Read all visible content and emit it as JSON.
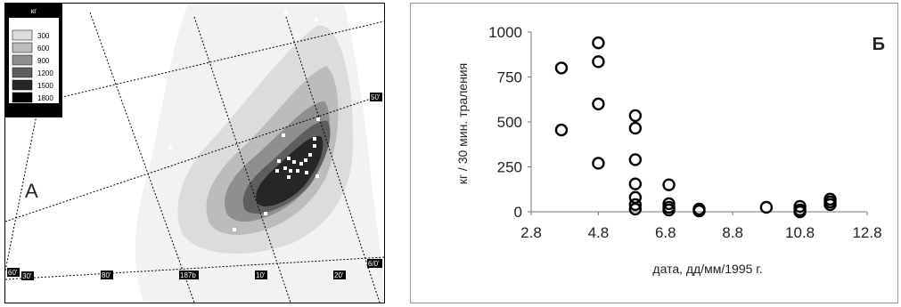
{
  "panel_a": {
    "label": "А",
    "legend": {
      "unit": "кг",
      "levels": [
        "300",
        "600",
        "900",
        "1200",
        "1500",
        "1800"
      ],
      "colors": [
        "#f2f2f2",
        "#dcdcdc",
        "#bcbcbc",
        "#8f8f8f",
        "#5e5e5e",
        "#262626",
        "#000000"
      ]
    },
    "grid_labels": {
      "lon": [
        "30'",
        "80'",
        "187b",
        "10'",
        "20'"
      ],
      "lat": [
        "60'",
        "50'",
        "6/0'"
      ]
    }
  },
  "chart_data": {
    "type": "scatter",
    "panel_label": "Б",
    "xlabel": "дата, дд/мм/1995 г.",
    "ylabel": "кг / 30 мин. траления",
    "xlim": [
      2.8,
      12.8
    ],
    "ylim": [
      0,
      1000
    ],
    "xticks": [
      "2.8",
      "4.8",
      "6.8",
      "8.8",
      "10.8",
      "12.8"
    ],
    "yticks": [
      "0",
      "250",
      "500",
      "750",
      "1000"
    ],
    "grid": false,
    "marker": "open-circle",
    "points": [
      {
        "x": 3.7,
        "y": 800
      },
      {
        "x": 3.7,
        "y": 455
      },
      {
        "x": 4.8,
        "y": 940
      },
      {
        "x": 4.8,
        "y": 835
      },
      {
        "x": 4.8,
        "y": 600
      },
      {
        "x": 4.8,
        "y": 270
      },
      {
        "x": 5.9,
        "y": 535
      },
      {
        "x": 5.9,
        "y": 465
      },
      {
        "x": 5.9,
        "y": 290
      },
      {
        "x": 5.9,
        "y": 155
      },
      {
        "x": 5.9,
        "y": 80
      },
      {
        "x": 5.9,
        "y": 40
      },
      {
        "x": 5.9,
        "y": 15
      },
      {
        "x": 6.9,
        "y": 150
      },
      {
        "x": 6.9,
        "y": 45
      },
      {
        "x": 6.9,
        "y": 25
      },
      {
        "x": 6.9,
        "y": 10
      },
      {
        "x": 7.8,
        "y": 15
      },
      {
        "x": 7.8,
        "y": 5
      },
      {
        "x": 9.8,
        "y": 25
      },
      {
        "x": 10.8,
        "y": 30
      },
      {
        "x": 10.8,
        "y": 10
      },
      {
        "x": 10.8,
        "y": 0
      },
      {
        "x": 11.7,
        "y": 70
      },
      {
        "x": 11.7,
        "y": 55
      },
      {
        "x": 11.7,
        "y": 40
      }
    ]
  }
}
